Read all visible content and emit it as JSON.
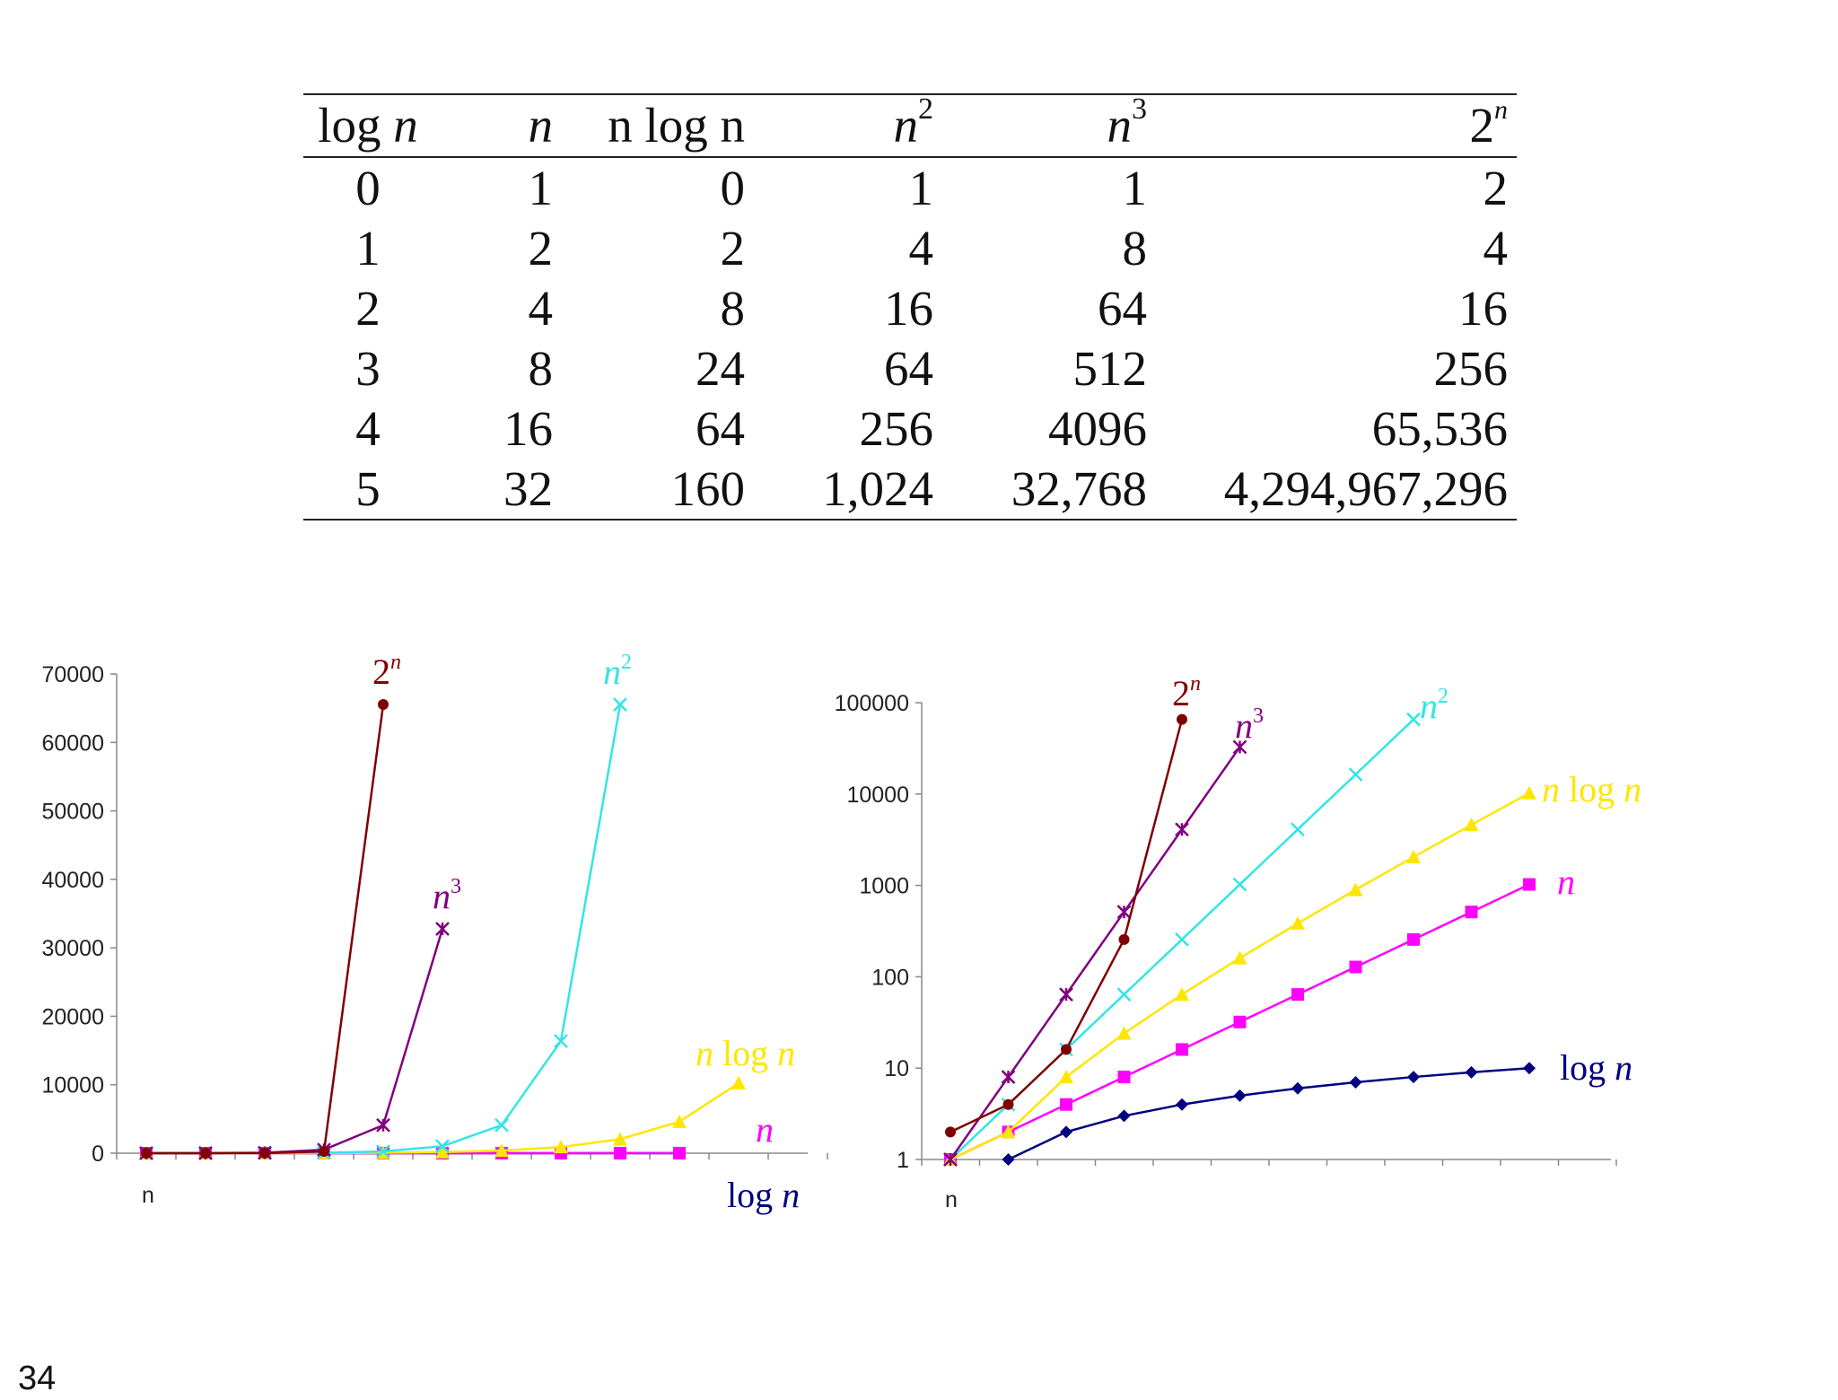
{
  "table": {
    "headers": [
      {
        "base": "log ",
        "var": "n",
        "sup": ""
      },
      {
        "base": "",
        "var": "n",
        "sup": ""
      },
      {
        "base": "n log n",
        "var": "",
        "sup": ""
      },
      {
        "base": "",
        "var": "n",
        "sup": "2"
      },
      {
        "base": "",
        "var": "n",
        "sup": "3"
      },
      {
        "base": "2",
        "var": "",
        "sup": "n"
      }
    ],
    "rows": [
      [
        "0",
        "1",
        "0",
        "1",
        "1",
        "2"
      ],
      [
        "1",
        "2",
        "2",
        "4",
        "8",
        "4"
      ],
      [
        "2",
        "4",
        "8",
        "16",
        "64",
        "16"
      ],
      [
        "3",
        "8",
        "24",
        "64",
        "512",
        "256"
      ],
      [
        "4",
        "16",
        "64",
        "256",
        "4096",
        "65,536"
      ],
      [
        "5",
        "32",
        "160",
        "1,024",
        "32,768",
        "4,294,967,296"
      ]
    ]
  },
  "chart_data": [
    {
      "type": "line",
      "scale": "linear",
      "xlabel": "n",
      "ylim": [
        0,
        70000
      ],
      "yticks": [
        "0",
        "10000",
        "20000",
        "30000",
        "40000",
        "50000",
        "60000",
        "70000"
      ],
      "x": [
        1,
        2,
        3,
        4,
        5,
        6,
        7,
        8,
        9,
        10,
        11
      ],
      "grid": false,
      "series": [
        {
          "name": "log n",
          "label": "log n",
          "color": "#000080",
          "marker": "diamond",
          "values": [
            0,
            1,
            1.58,
            2,
            2.32,
            2.58,
            2.81,
            3,
            3.17,
            3.32,
            null
          ]
        },
        {
          "name": "n",
          "label": "n",
          "color": "#FF00FF",
          "marker": "square",
          "values": [
            1,
            2,
            3,
            4,
            5,
            6,
            7,
            8,
            9,
            10,
            null
          ]
        },
        {
          "name": "n log n",
          "label": "n log n",
          "color": "#FFE600",
          "marker": "triangle",
          "values": [
            0,
            2,
            8,
            24,
            64,
            160,
            384,
            896,
            2048,
            4608,
            10240
          ]
        },
        {
          "name": "n2",
          "label": "n",
          "sup": "2",
          "color": "#33E5E5",
          "marker": "x",
          "values": [
            1,
            4,
            16,
            64,
            256,
            1024,
            4096,
            16384,
            65536,
            null,
            null
          ]
        },
        {
          "name": "n3",
          "label": "n",
          "sup": "3",
          "color": "#800080",
          "marker": "star",
          "values": [
            1,
            8,
            64,
            512,
            4096,
            32768,
            null,
            null,
            null,
            null,
            null
          ]
        },
        {
          "name": "2n",
          "label": "2",
          "sup": "n",
          "color": "#800000",
          "marker": "circle",
          "values": [
            2,
            4,
            16,
            256,
            65536,
            null,
            null,
            null,
            null,
            null,
            null
          ]
        }
      ]
    },
    {
      "type": "line",
      "scale": "log",
      "xlabel": "n",
      "ylim": [
        1,
        100000
      ],
      "yticks": [
        "1",
        "10",
        "100",
        "1000",
        "10000",
        "100000"
      ],
      "x": [
        1,
        2,
        3,
        4,
        5,
        6,
        7,
        8,
        9,
        10,
        11
      ],
      "grid": false,
      "series": [
        {
          "name": "log n",
          "label": "log n",
          "color": "#000080",
          "marker": "diamond",
          "values": [
            null,
            1,
            2,
            3,
            4,
            5,
            6,
            7,
            8,
            9,
            10
          ]
        },
        {
          "name": "n",
          "label": "n",
          "color": "#FF00FF",
          "marker": "square",
          "values": [
            1,
            2,
            4,
            8,
            16,
            32,
            64,
            128,
            256,
            512,
            1024
          ]
        },
        {
          "name": "n log n",
          "label": "n log n",
          "color": "#FFE600",
          "marker": "triangle",
          "values": [
            1,
            2,
            8,
            24,
            64,
            160,
            384,
            896,
            2048,
            4608,
            10240
          ]
        },
        {
          "name": "n2",
          "label": "n",
          "sup": "2",
          "color": "#33E5E5",
          "marker": "x",
          "values": [
            1,
            4,
            16,
            64,
            256,
            1024,
            4096,
            16384,
            65536,
            null,
            null
          ]
        },
        {
          "name": "n3",
          "label": "n",
          "sup": "3",
          "color": "#800080",
          "marker": "star",
          "values": [
            1,
            8,
            64,
            512,
            4096,
            32768,
            null,
            null,
            null,
            null,
            null
          ]
        },
        {
          "name": "2n",
          "label": "2",
          "sup": "n",
          "color": "#800000",
          "marker": "circle",
          "values": [
            2,
            4,
            16,
            256,
            65536,
            null,
            null,
            null,
            null,
            null,
            null
          ]
        }
      ]
    }
  ],
  "page_number": "34"
}
